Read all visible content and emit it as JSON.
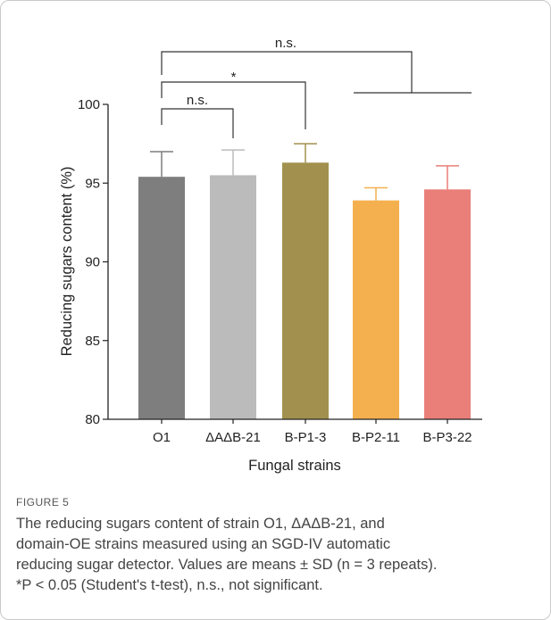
{
  "chart_data": {
    "type": "bar",
    "categories": [
      "O1",
      "ΔAΔB-21",
      "B-P1-3",
      "B-P2-11",
      "B-P3-22"
    ],
    "values": [
      95.4,
      95.5,
      96.3,
      93.9,
      94.6
    ],
    "errors": [
      1.6,
      1.6,
      1.2,
      0.8,
      1.5
    ],
    "colors": [
      "#7e7e7e",
      "#bbbbbb",
      "#a2914e",
      "#f4b04e",
      "#ea7e79"
    ],
    "xlabel": "Fungal strains",
    "ylabel": "Reducing sugars content (%)",
    "ylim": [
      80,
      100
    ],
    "yticks": [
      80,
      85,
      90,
      95,
      100
    ],
    "annotations": [
      {
        "from": "O1",
        "to": "ΔAΔB-21",
        "label": "n.s."
      },
      {
        "from": "O1",
        "to": "B-P1-3",
        "label": "*"
      },
      {
        "from": "O1",
        "to": "B-P2-11 – B-P3-22",
        "label": "n.s."
      }
    ],
    "grid": false,
    "legend": "none"
  },
  "caption": {
    "label": "FIGURE 5",
    "line1": "The reducing sugars content of strain O1, ΔAΔB-21, and",
    "line2": "domain-OE strains measured using an SGD-IV automatic",
    "line3": "reducing sugar detector. Values are means ± SD (n = 3 repeats).",
    "line4": "*P < 0.05 (Student's t-test), n.s., not significant."
  }
}
